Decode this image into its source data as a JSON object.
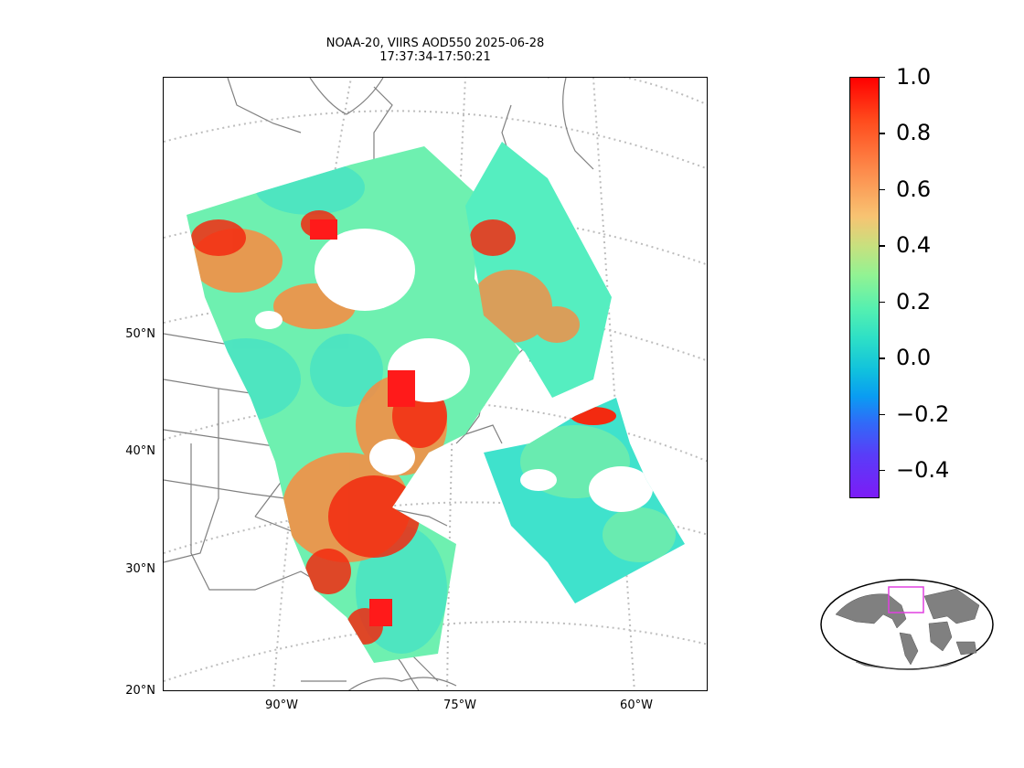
{
  "title": {
    "line1": "NOAA-20, VIIRS AOD550 2025-06-28",
    "line2": "17:37:34-17:50:21"
  },
  "map": {
    "lat_labels": [
      "50°N",
      "40°N",
      "30°N",
      "20°N"
    ],
    "lon_labels": [
      "90°W",
      "75°W",
      "60°W"
    ],
    "graticule_style": "dotted-grey",
    "coastline_color": "#808080"
  },
  "colorbar": {
    "colormap": "rainbow",
    "range": [
      -0.5,
      1.0
    ],
    "tick_labels": [
      "1.0",
      "0.8",
      "0.6",
      "0.4",
      "0.2",
      "0.0",
      "−0.2",
      "−0.4"
    ],
    "tick_values": [
      1.0,
      0.8,
      0.6,
      0.4,
      0.2,
      0.0,
      -0.2,
      -0.4
    ]
  },
  "inset": {
    "land_color": "#808080",
    "region_box_color": "#e040e0"
  }
}
